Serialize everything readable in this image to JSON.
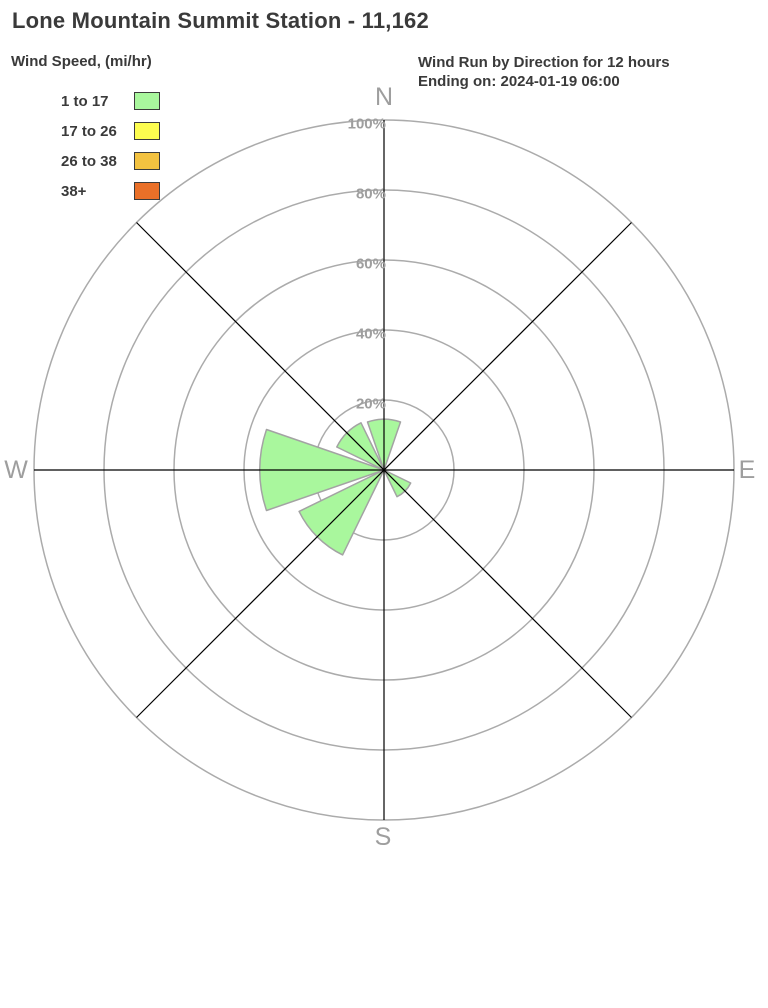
{
  "title": "Lone Mountain Summit Station - 11,162",
  "header": {
    "line1": "Wind Run by Direction for 12 hours",
    "line2": "Ending on: 2024-01-19 06:00"
  },
  "legend": {
    "title": "Wind Speed, (mi/hr)",
    "items": [
      {
        "label": "1 to 17",
        "color": "#a9f79d"
      },
      {
        "label": "17 to 26",
        "color": "#fdfd4f"
      },
      {
        "label": "26 to 38",
        "color": "#f3c240"
      },
      {
        "label": "38+",
        "color": "#ea7028"
      }
    ]
  },
  "chart_data": {
    "type": "bar",
    "subtype": "wind-rose-polar",
    "title": "Wind Run by Direction for 12 hours",
    "axis_unit": "%",
    "axis_max": 100,
    "ring_ticks": [
      20,
      40,
      60,
      80,
      100
    ],
    "ring_tick_labels": [
      "20%",
      "40%",
      "60%",
      "80%",
      "100%"
    ],
    "compass_labels": [
      {
        "label": "N",
        "bearing": 0
      },
      {
        "label": "E",
        "bearing": 90
      },
      {
        "label": "S",
        "bearing": 180
      },
      {
        "label": "W",
        "bearing": 270
      }
    ],
    "petals": [
      {
        "direction": "N",
        "bearing": 0,
        "value_pct": 14.5,
        "speed_bin": "1 to 17"
      },
      {
        "direction": "SE",
        "bearing": 135,
        "value_pct": 8.5,
        "speed_bin": "1 to 17"
      },
      {
        "direction": "SW",
        "bearing": 225,
        "value_pct": 27,
        "speed_bin": "1 to 17"
      },
      {
        "direction": "W",
        "bearing": 270,
        "value_pct": 35.5,
        "speed_bin": "1 to 17"
      },
      {
        "direction": "NW",
        "bearing": 315,
        "value_pct": 15,
        "speed_bin": "1 to 17"
      }
    ],
    "colors": {
      "petal_fill": "#a9f79d",
      "petal_stroke": "#a3a3a3",
      "ring_stroke": "#ababab",
      "axis_stroke": "#000000",
      "gray_label": "#9e9e9e",
      "text": "#3a3a3a"
    },
    "legend_position": "top-left",
    "grid": "on"
  }
}
